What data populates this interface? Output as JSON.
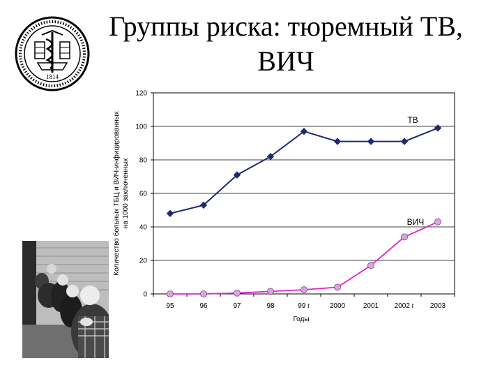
{
  "slide": {
    "title_line1": "Группы риска: тюремный ТВ,",
    "title_line2": "ВИЧ",
    "logo_year": "1814",
    "colors": {
      "tb": "#1f2a6e",
      "hiv_line": "#e020d0",
      "hiv_marker": "#d9a6dc"
    },
    "icons": {
      "logo": "university-seal-icon",
      "photo": "prisoners-photo"
    }
  },
  "chart_data": {
    "type": "line",
    "categories": [
      "95",
      "96",
      "97",
      "98",
      "99 г",
      "2000",
      "2001",
      "2002 г",
      "2003"
    ],
    "series": [
      {
        "name": "ТВ",
        "values": [
          48,
          53,
          71,
          82,
          97,
          91,
          91,
          91,
          99
        ]
      },
      {
        "name": "ВИЧ",
        "values": [
          0,
          0,
          0.5,
          1.5,
          2.5,
          4,
          17,
          34,
          43
        ]
      }
    ],
    "yticks": [
      "0",
      "20",
      "40",
      "60",
      "80",
      "100",
      "120"
    ],
    "ylim": [
      0,
      120
    ],
    "xlabel": "Годы",
    "ylabel_line1": "Количество больных ТБЦ и ВИЧ-инфицированных",
    "ylabel_line2": "на 1000 заключенных",
    "grid": true,
    "legend": "inline labels"
  }
}
